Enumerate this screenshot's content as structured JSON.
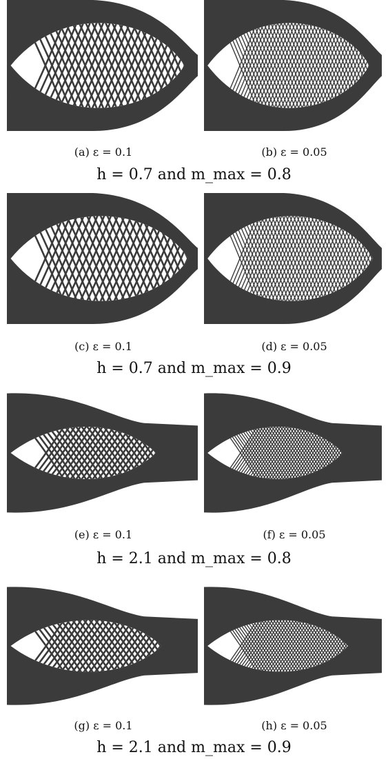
{
  "figure": {
    "rows": [
      {
        "caption": "h = 0.7 and m_max = 0.8",
        "panels": [
          {
            "label": "(a)",
            "equation": "ε = 0.1"
          },
          {
            "label": "(b)",
            "equation": "ε = 0.05"
          }
        ]
      },
      {
        "caption": "h = 0.7 and m_max = 0.9",
        "panels": [
          {
            "label": "(c)",
            "equation": "ε = 0.1"
          },
          {
            "label": "(d)",
            "equation": "ε = 0.05"
          }
        ]
      },
      {
        "caption": "h = 2.1 and m_max = 0.8",
        "panels": [
          {
            "label": "(e)",
            "equation": "ε = 0.1"
          },
          {
            "label": "(f)",
            "equation": "ε = 0.05"
          }
        ]
      },
      {
        "caption": "h = 2.1 and m_max = 0.9",
        "panels": [
          {
            "label": "(g)",
            "equation": "ε = 0.1"
          },
          {
            "label": "(h)",
            "equation": "ε = 0.05"
          }
        ]
      }
    ],
    "colors": {
      "structure": "#3b3b3b",
      "void": "#ffffff"
    }
  }
}
